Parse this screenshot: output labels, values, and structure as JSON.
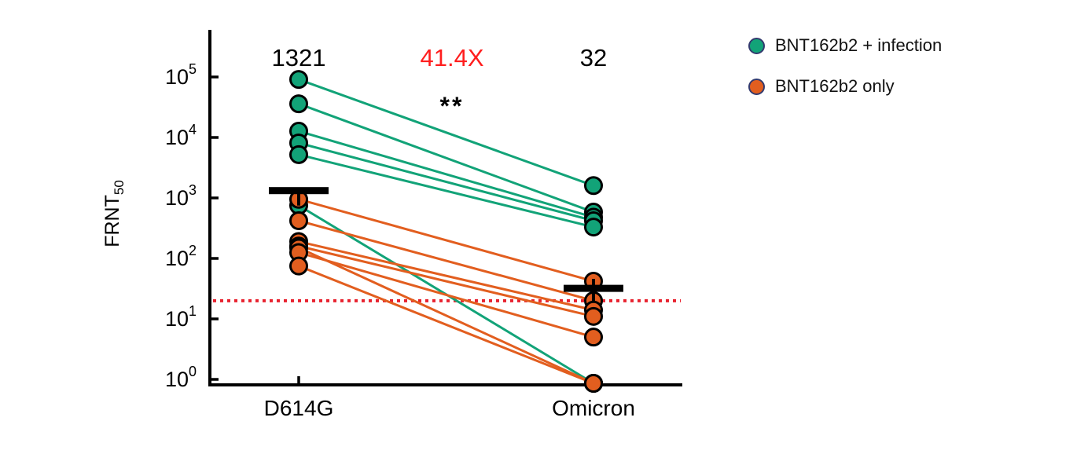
{
  "chart_data": {
    "type": "line",
    "subtype": "paired-dot-plot-log-scale",
    "title": "",
    "ylabel": "FRNT",
    "ylabel_subscript": "50",
    "categories": [
      "D614G",
      "Omicron"
    ],
    "y_axis": {
      "scale": "log10",
      "tick_exponents": [
        5,
        4,
        3,
        2,
        1,
        0
      ],
      "ylim": [
        1,
        200000
      ],
      "grid": false
    },
    "limit_of_detection": 20,
    "lod_line_color": "#e8212e",
    "means": [
      1321,
      32
    ],
    "mean_bar_color": "#000000",
    "annotations": {
      "d614g_mean_label": "1321",
      "fold_change_label": "41.4X",
      "fold_change_color": "#ff1e1e",
      "omicron_mean_label": "32",
      "significance": "**"
    },
    "series": [
      {
        "name": "BNT162b2 + infection",
        "color": "#12a378",
        "pairs": [
          [
            91000,
            1600
          ],
          [
            36000,
            583
          ],
          [
            12700,
            480
          ],
          [
            8100,
            420
          ],
          [
            5200,
            330
          ],
          [
            750,
            1
          ]
        ]
      },
      {
        "name": "BNT162b2 only",
        "color": "#e25e1f",
        "pairs": [
          [
            950,
            42
          ],
          [
            420,
            20
          ],
          [
            190,
            14
          ],
          [
            160,
            11
          ],
          [
            150,
            1
          ],
          [
            125,
            5
          ],
          [
            75,
            1
          ]
        ]
      }
    ],
    "legend": {
      "position": "top-right",
      "items": [
        {
          "label": "BNT162b2 + infection",
          "color": "#12a378"
        },
        {
          "label": "BNT162b2 only",
          "color": "#e25e1f"
        }
      ]
    }
  }
}
